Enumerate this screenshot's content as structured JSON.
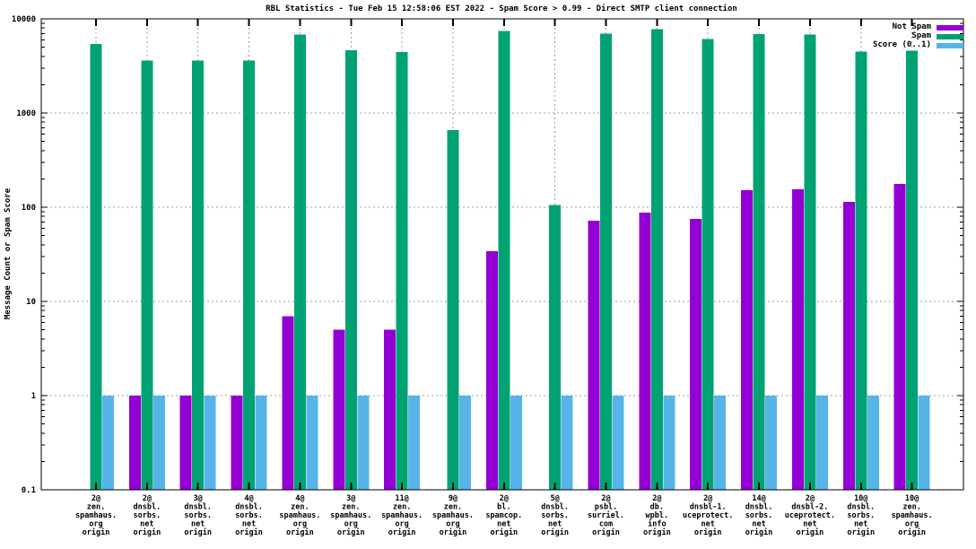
{
  "chart_data": {
    "type": "bar",
    "title": "RBL Statistics - Tue Feb 15 12:58:06 EST 2022 - Spam Score > 0.99 - Direct SMTP client connection",
    "ylabel": "Message Count or Spam Score",
    "xlabel": "",
    "y_scale": "log",
    "ylim": [
      0.1,
      10000
    ],
    "ytick_values": [
      10000,
      1000,
      100,
      10,
      1,
      0.1
    ],
    "ytick_labels": [
      "10000",
      "1000",
      "100",
      "10",
      "1",
      "0.1"
    ],
    "grid": true,
    "grid_style": "dashed",
    "legend_position": "top-right-inside",
    "background_color": "#ffffff",
    "categories": [
      [
        "2@",
        "zen.",
        "spamhaus.",
        "org",
        "origin"
      ],
      [
        "2@",
        "dnsbl.",
        "sorbs.",
        "net",
        "origin"
      ],
      [
        "3@",
        "dnsbl.",
        "sorbs.",
        "net",
        "origin"
      ],
      [
        "4@",
        "dnsbl.",
        "sorbs.",
        "net",
        "origin"
      ],
      [
        "4@",
        "zen.",
        "spamhaus.",
        "org",
        "origin"
      ],
      [
        "3@",
        "zen.",
        "spamhaus.",
        "org",
        "origin"
      ],
      [
        "11@",
        "zen.",
        "spamhaus.",
        "org",
        "origin"
      ],
      [
        "9@",
        "zen.",
        "spamhaus.",
        "org",
        "origin"
      ],
      [
        "2@",
        "bl.",
        "spamcop.",
        "net",
        "origin"
      ],
      [
        "5@",
        "dnsbl.",
        "sorbs.",
        "net",
        "origin"
      ],
      [
        "2@",
        "psbl.",
        "surriel.",
        "com",
        "origin"
      ],
      [
        "2@",
        "db.",
        "wpbl.",
        "info",
        "origin"
      ],
      [
        "2@",
        "dnsbl-1.",
        "uceprotect.",
        "net",
        "origin"
      ],
      [
        "14@",
        "dnsbl.",
        "sorbs.",
        "net",
        "origin"
      ],
      [
        "2@",
        "dnsbl-2.",
        "uceprotect.",
        "net",
        "origin"
      ],
      [
        "10@",
        "dnsbl.",
        "sorbs.",
        "net",
        "origin"
      ],
      [
        "10@",
        "zen.",
        "spamhaus.",
        "org",
        "origin"
      ]
    ],
    "series": [
      {
        "name": "Not Spam",
        "color": "#9400D3",
        "values": [
          null,
          1,
          1,
          1,
          7,
          5,
          5,
          null,
          34,
          null,
          72,
          88,
          75,
          152,
          155,
          114,
          177
        ]
      },
      {
        "name": "Spam",
        "color": "#00A273",
        "values": [
          5400,
          3600,
          3600,
          3600,
          6800,
          4650,
          4450,
          660,
          7400,
          106,
          7000,
          7800,
          6100,
          6900,
          6800,
          4500,
          4600
        ]
      },
      {
        "name": "Score (0..1)",
        "color": "#56B4E9",
        "values": [
          1,
          1,
          1,
          1,
          1,
          1,
          1,
          1,
          1,
          1,
          1,
          1,
          1,
          1,
          1,
          1,
          1
        ]
      }
    ],
    "grid_color": "#a0a0a0",
    "axis_color": "#000000"
  }
}
